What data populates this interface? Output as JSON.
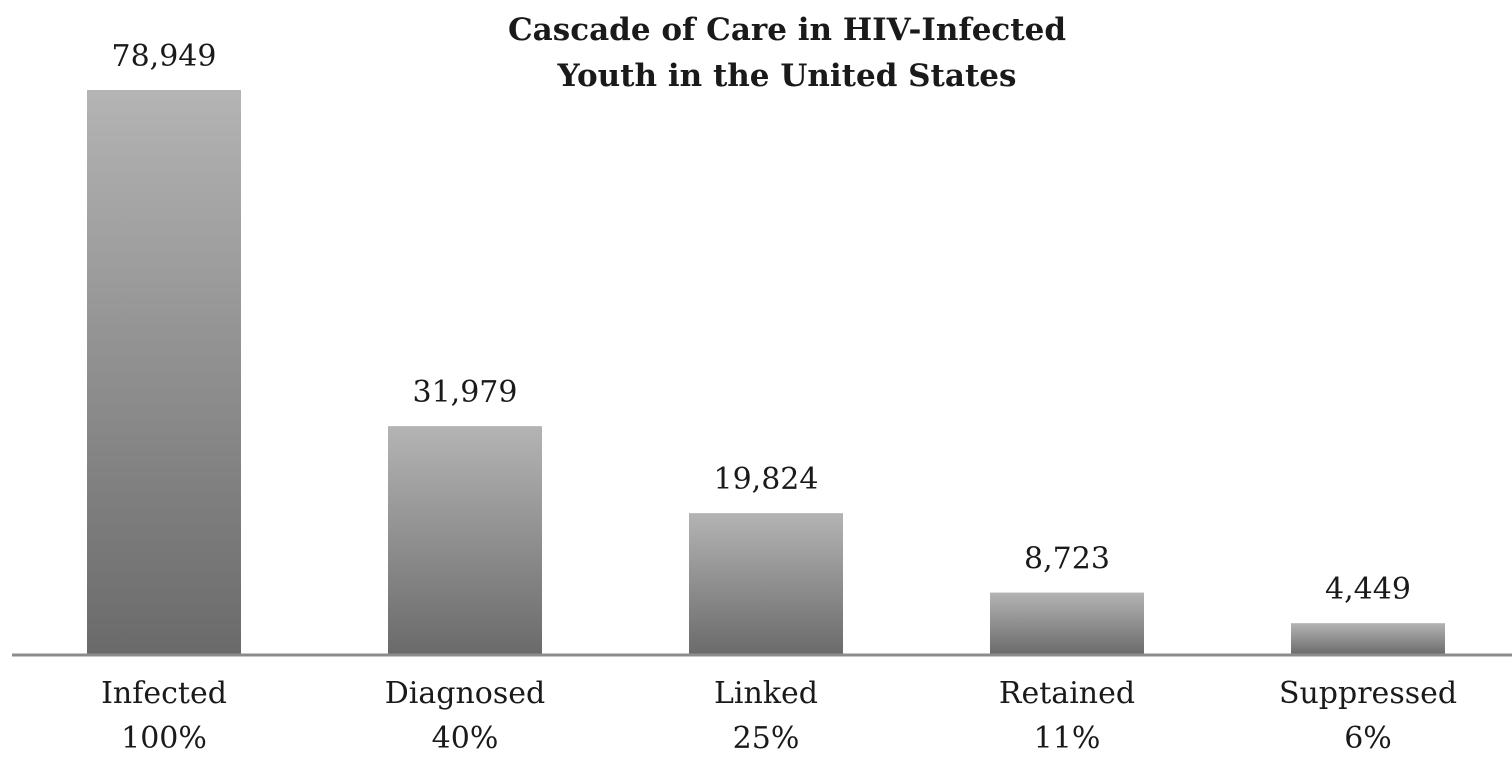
{
  "chart_data": {
    "type": "bar",
    "title_lines": [
      "Cascade of Care in HIV-Infected",
      "Youth in the United States"
    ],
    "categories": [
      "Infected",
      "Diagnosed",
      "Linked",
      "Retained",
      "Suppressed"
    ],
    "values": [
      78949,
      31979,
      19824,
      8723,
      4449
    ],
    "value_labels": [
      "78,949",
      "31,979",
      "19,824",
      "8,723",
      "4,449"
    ],
    "percent_labels": [
      "100%",
      "40%",
      "25%",
      "11%",
      "6%"
    ],
    "ylim": [
      0,
      78949
    ],
    "grid": false,
    "legend": "none",
    "colors": {
      "bar_top": "#b4b4b4",
      "bar_bottom": "#6a6a6a",
      "axis": "#8c8c8c"
    }
  }
}
